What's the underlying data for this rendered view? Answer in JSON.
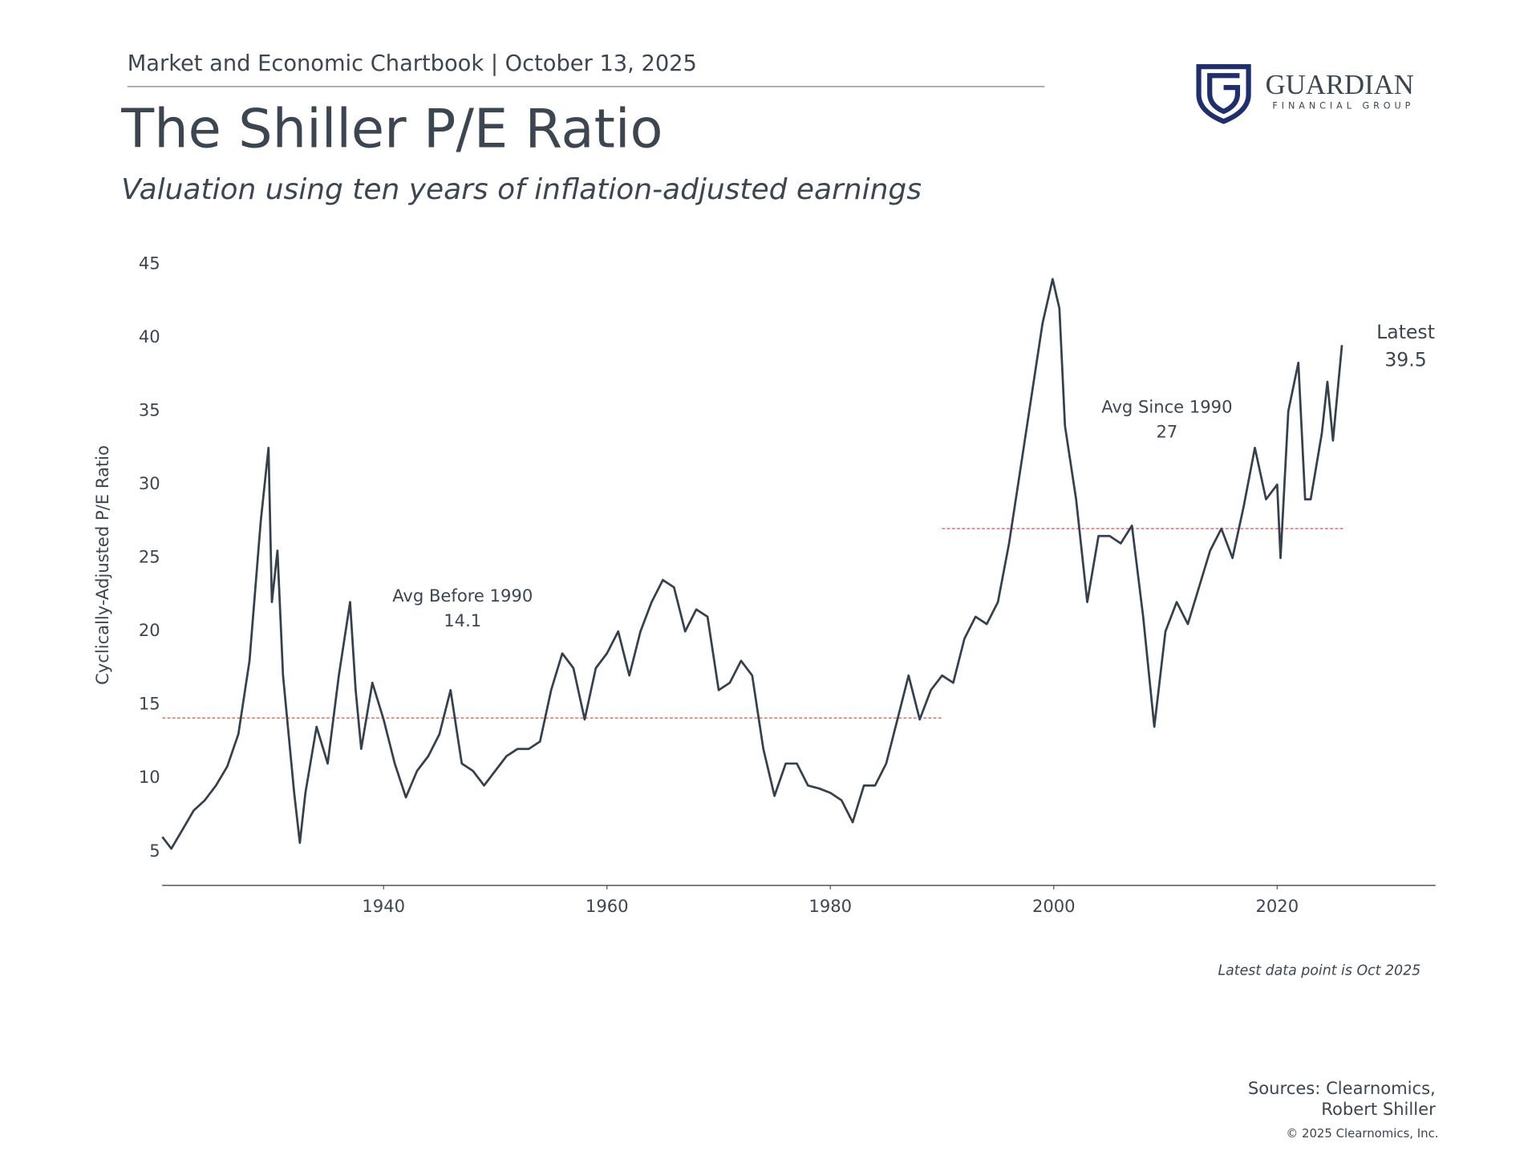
{
  "page": {
    "header": "Market and Economic Chartbook | October 13, 2025",
    "logo_name": "GUARDIAN",
    "logo_sub": "FINANCIAL GROUP",
    "sources": [
      "Sources: Clearnomics,",
      "Robert Shiller"
    ],
    "copyright": "© 2025 Clearnomics, Inc."
  },
  "chart_data": {
    "type": "line",
    "title": "The Shiller P/E Ratio",
    "subtitle": "Valuation using ten years of inflation-adjusted earnings",
    "y_label": "Cyclically-Adjusted P/E Ratio",
    "note": "Latest data point is Oct 2025",
    "latest_label": "Latest",
    "x": [
      1920.2,
      1921,
      1922,
      1923,
      1924,
      1925,
      1926,
      1927,
      1928,
      1929,
      1929.7,
      1930,
      1930.5,
      1931,
      1932,
      1932.5,
      1933,
      1934,
      1935,
      1936,
      1937,
      1937.5,
      1938,
      1939,
      1940,
      1941,
      1942,
      1943,
      1944,
      1945,
      1946,
      1946.8,
      1947,
      1948,
      1949,
      1950,
      1951,
      1952,
      1953,
      1954,
      1955,
      1956,
      1957,
      1958,
      1959,
      1960,
      1961,
      1962,
      1963,
      1964,
      1965,
      1966,
      1967,
      1968,
      1969,
      1970,
      1971,
      1972,
      1973,
      1974,
      1975,
      1976,
      1977,
      1978,
      1979,
      1980,
      1981,
      1982,
      1983,
      1984,
      1985,
      1986,
      1987,
      1988,
      1989,
      1990,
      1991,
      1992,
      1993,
      1994,
      1995,
      1996,
      1997,
      1998,
      1999,
      1999.9,
      2000.5,
      2001,
      2002,
      2003,
      2004,
      2005,
      2006,
      2007,
      2008,
      2009,
      2010,
      2011,
      2012,
      2013,
      2014,
      2015,
      2016,
      2017,
      2018,
      2019,
      2020,
      2020.3,
      2021,
      2021.9,
      2022.5,
      2023,
      2024,
      2024.5,
      2025,
      2025.8
    ],
    "series": [
      {
        "name": "Shiller P/E",
        "color": "#34414d",
        "values": [
          6,
          5.2,
          6.5,
          7.8,
          8.5,
          9.5,
          10.8,
          13,
          18,
          27.5,
          32.5,
          22,
          25.5,
          17,
          9,
          5.6,
          9,
          13.5,
          11,
          17,
          22,
          16,
          12,
          16.5,
          14,
          11,
          8.7,
          10.5,
          11.5,
          13,
          16,
          12,
          11,
          10.5,
          9.5,
          10.5,
          11.5,
          12,
          12,
          12.5,
          16,
          18.5,
          17.5,
          14,
          17.5,
          18.5,
          20,
          17,
          20,
          22,
          23.5,
          23,
          20,
          21.5,
          21,
          16,
          16.5,
          18,
          17,
          12,
          8.8,
          11,
          11,
          9.5,
          9.3,
          9,
          8.5,
          7,
          9.5,
          9.5,
          11,
          14,
          17,
          14,
          16,
          17,
          16.5,
          19.5,
          21,
          20.5,
          22,
          26,
          31,
          36,
          41,
          44,
          42,
          34,
          29,
          22,
          26.5,
          26.5,
          26,
          27.2,
          21,
          13.5,
          20,
          22,
          20.5,
          23,
          25.5,
          27,
          25,
          28.5,
          32.5,
          29,
          30,
          25,
          35,
          38.3,
          29,
          29,
          33.5,
          37,
          33,
          39.5
        ]
      }
    ],
    "averages": [
      {
        "label": "Avg Before 1990",
        "value": 14.1,
        "start": 1920.2,
        "end": 1990,
        "color": "#e07b6e"
      },
      {
        "label": "Avg Since 1990",
        "value": 27.0,
        "start": 1990,
        "end": 2026,
        "color": "#e07b6e"
      }
    ],
    "xlim": [
      1920,
      2034
    ],
    "xticks": [
      1940,
      1960,
      1980,
      2000,
      2020
    ],
    "ylim": [
      2.7,
      46
    ],
    "yticks": [
      5,
      10,
      15,
      20,
      25,
      30,
      35,
      40,
      45
    ],
    "grid": false
  }
}
